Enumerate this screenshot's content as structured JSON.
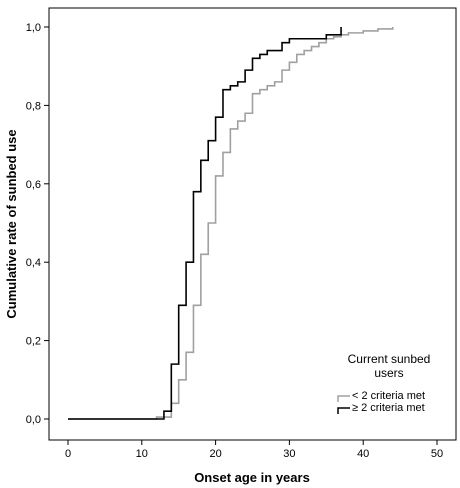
{
  "chart_data": {
    "type": "line",
    "step": true,
    "title": "",
    "xlabel": "Onset age in years",
    "ylabel": "Cumulative rate of sunbed use",
    "xlim": [
      0,
      50
    ],
    "ylim": [
      0,
      1
    ],
    "x_ticks": [
      0,
      10,
      20,
      30,
      40,
      50
    ],
    "x_tick_labels": [
      "0",
      "10",
      "20",
      "30",
      "40",
      "50"
    ],
    "y_ticks": [
      0,
      0.2,
      0.4,
      0.6,
      0.8,
      1.0
    ],
    "y_tick_labels": [
      "0,0",
      "0,2",
      "0,4",
      "0,6",
      "0,8",
      "1,0"
    ],
    "grid": false,
    "legend": {
      "title_line1": "Current sunbed",
      "title_line2": "users",
      "position": "bottom-right"
    },
    "series": [
      {
        "name": "< 2 criteria met",
        "color": "#a0a0a0",
        "points": [
          [
            0,
            0.0
          ],
          [
            12,
            0.005
          ],
          [
            14,
            0.04
          ],
          [
            15,
            0.1
          ],
          [
            16,
            0.17
          ],
          [
            17,
            0.29
          ],
          [
            18,
            0.42
          ],
          [
            19,
            0.5
          ],
          [
            20,
            0.62
          ],
          [
            21,
            0.68
          ],
          [
            22,
            0.74
          ],
          [
            23,
            0.76
          ],
          [
            24,
            0.78
          ],
          [
            25,
            0.83
          ],
          [
            26,
            0.84
          ],
          [
            27,
            0.85
          ],
          [
            28,
            0.86
          ],
          [
            29,
            0.89
          ],
          [
            30,
            0.91
          ],
          [
            31,
            0.93
          ],
          [
            32,
            0.94
          ],
          [
            33,
            0.95
          ],
          [
            34,
            0.96
          ],
          [
            35,
            0.97
          ],
          [
            36,
            0.975
          ],
          [
            37,
            0.98
          ],
          [
            38,
            0.985
          ],
          [
            40,
            0.99
          ],
          [
            42,
            0.995
          ],
          [
            44,
            1.0
          ]
        ]
      },
      {
        "name": "≥ 2 criteria met",
        "color": "#000000",
        "points": [
          [
            0,
            0.0
          ],
          [
            13,
            0.02
          ],
          [
            14,
            0.14
          ],
          [
            15,
            0.29
          ],
          [
            16,
            0.4
          ],
          [
            17,
            0.58
          ],
          [
            18,
            0.66
          ],
          [
            19,
            0.71
          ],
          [
            20,
            0.77
          ],
          [
            21,
            0.84
          ],
          [
            22,
            0.85
          ],
          [
            23,
            0.86
          ],
          [
            24,
            0.89
          ],
          [
            25,
            0.92
          ],
          [
            26,
            0.93
          ],
          [
            27,
            0.94
          ],
          [
            29,
            0.96
          ],
          [
            30,
            0.97
          ],
          [
            35,
            0.98
          ],
          [
            37,
            1.0
          ]
        ]
      }
    ]
  }
}
